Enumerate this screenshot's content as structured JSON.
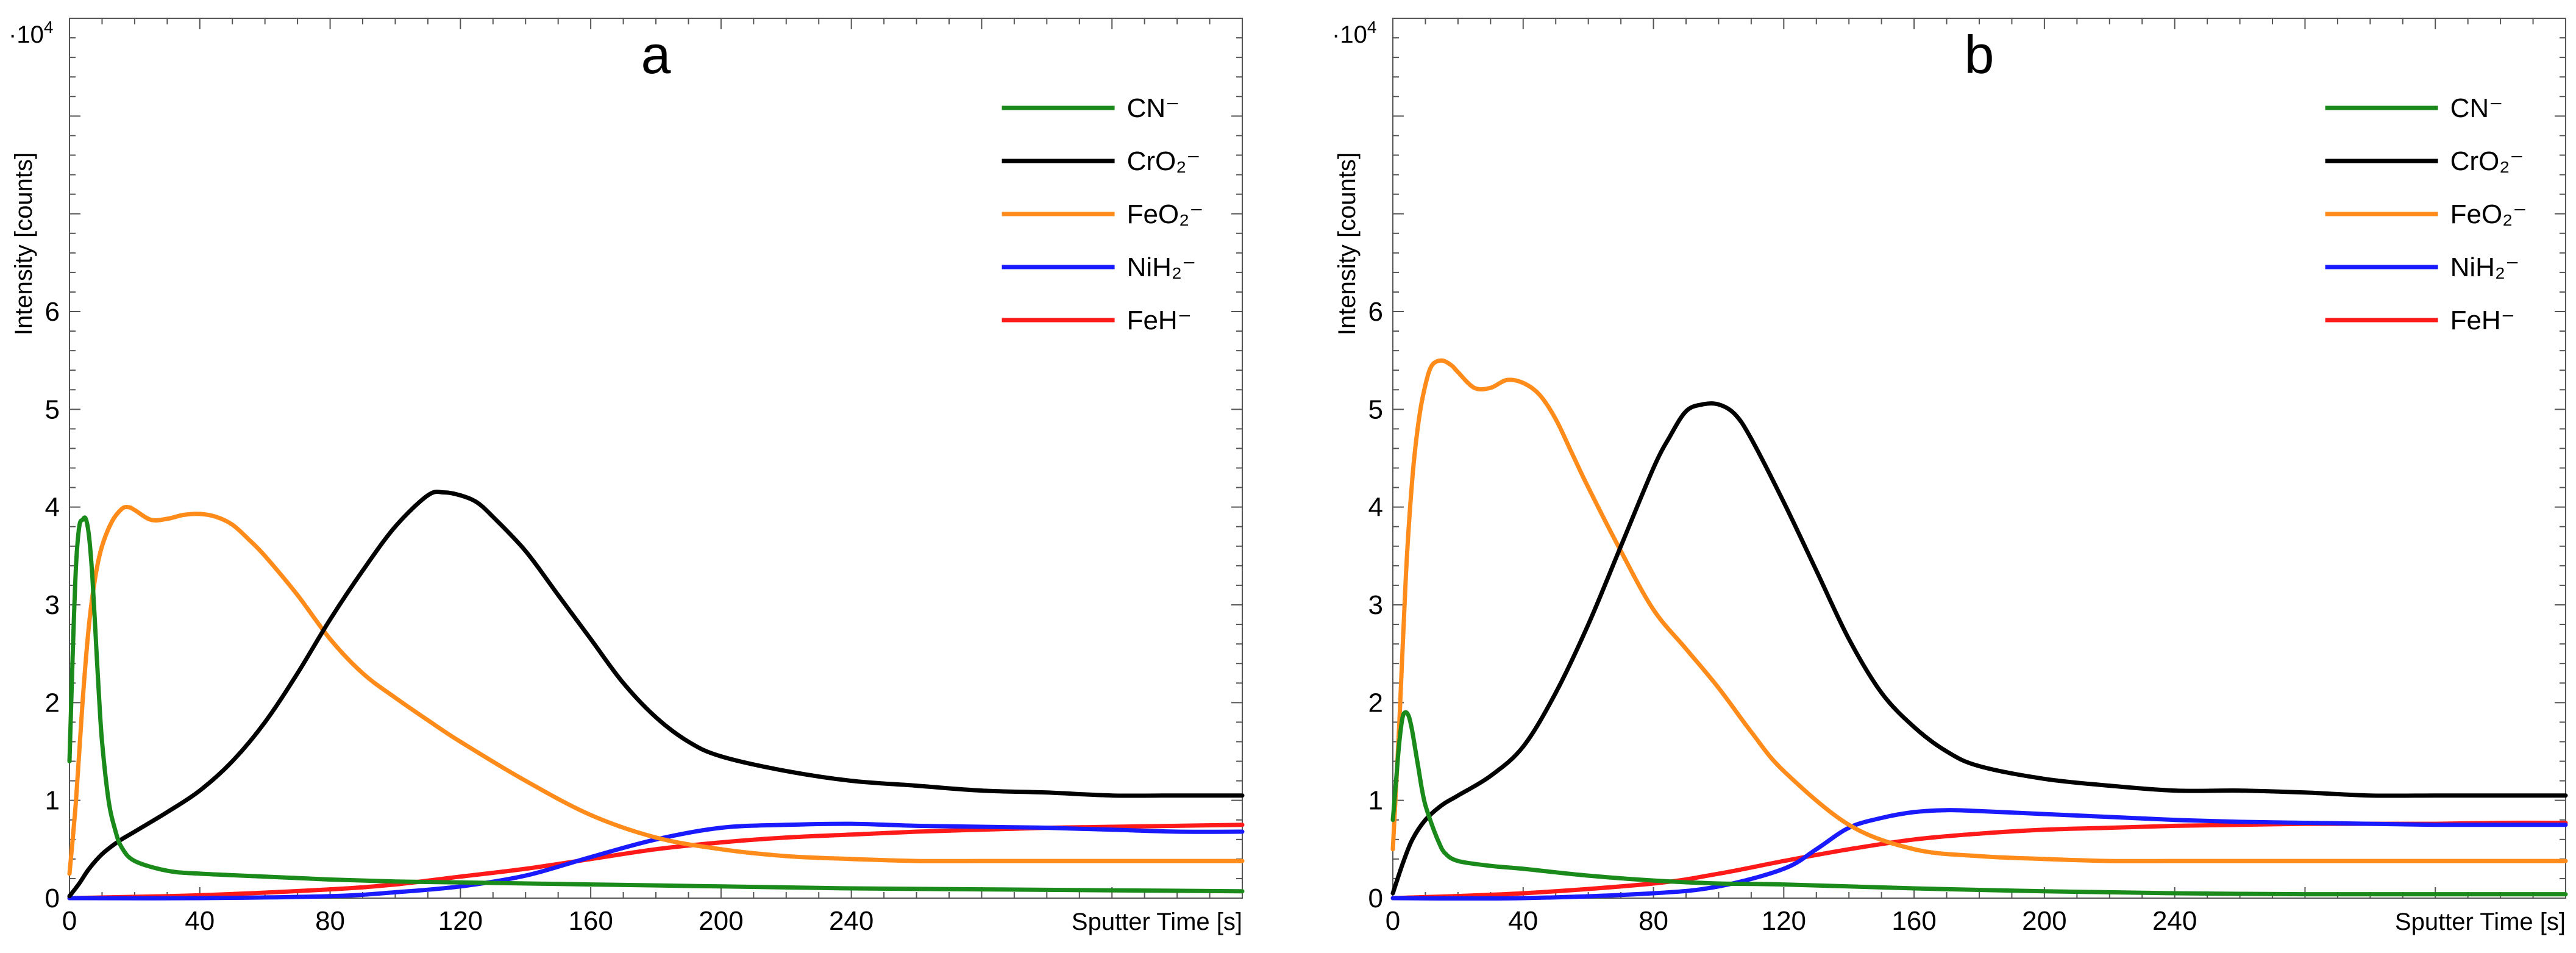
{
  "chart_data": [
    {
      "type": "line",
      "title": "a",
      "xlabel": "Sputter Time [s]",
      "ylabel": "Intensity [counts]",
      "y_exponent": "·10",
      "y_exponent_power": "4",
      "xlim": [
        0,
        360
      ],
      "ylim": [
        0,
        9
      ],
      "x_ticks": [
        0,
        40,
        80,
        120,
        160,
        200,
        240
      ],
      "x_tick_labels": [
        "0",
        "40",
        "80",
        "120",
        "160",
        "200",
        "240"
      ],
      "y_ticks": [
        0,
        1,
        2,
        3,
        4,
        5,
        6
      ],
      "y_tick_labels": [
        "0",
        "1",
        "2",
        "3",
        "4",
        "5",
        "6"
      ],
      "legend_position": "top-right",
      "series": [
        {
          "name": "CN⁻",
          "color": "#1a8a1a",
          "x": [
            0,
            1,
            2,
            3,
            4,
            5,
            6,
            7,
            8,
            9,
            10,
            12,
            14,
            16,
            20,
            30,
            40,
            60,
            80,
            100,
            120,
            160,
            200,
            240,
            280,
            320,
            360
          ],
          "y": [
            1.4,
            2.5,
            3.4,
            3.8,
            3.87,
            3.88,
            3.7,
            3.3,
            2.7,
            2.1,
            1.6,
            1.0,
            0.7,
            0.52,
            0.38,
            0.28,
            0.25,
            0.22,
            0.19,
            0.17,
            0.16,
            0.14,
            0.12,
            0.1,
            0.09,
            0.08,
            0.07
          ]
        },
        {
          "name": "CrO₂⁻",
          "color": "#000000",
          "x": [
            0,
            3,
            6,
            10,
            15,
            20,
            30,
            40,
            50,
            60,
            70,
            80,
            90,
            100,
            110,
            115,
            120,
            125,
            130,
            140,
            150,
            160,
            170,
            180,
            190,
            200,
            220,
            240,
            260,
            280,
            300,
            320,
            340,
            360
          ],
          "y": [
            0.02,
            0.15,
            0.3,
            0.45,
            0.58,
            0.68,
            0.88,
            1.1,
            1.4,
            1.8,
            2.3,
            2.85,
            3.35,
            3.8,
            4.12,
            4.15,
            4.12,
            4.05,
            3.9,
            3.55,
            3.1,
            2.65,
            2.2,
            1.85,
            1.6,
            1.45,
            1.3,
            1.2,
            1.15,
            1.1,
            1.08,
            1.05,
            1.05,
            1.05
          ]
        },
        {
          "name": "FeO₂⁻",
          "color": "#ff8c1a",
          "x": [
            0,
            2,
            4,
            6,
            8,
            10,
            13,
            16,
            18,
            20,
            25,
            30,
            35,
            40,
            45,
            50,
            55,
            60,
            70,
            80,
            90,
            100,
            110,
            120,
            140,
            160,
            180,
            200,
            220,
            240,
            260,
            280,
            300,
            320,
            340,
            360
          ],
          "y": [
            0.25,
            1.0,
            2.0,
            2.8,
            3.3,
            3.6,
            3.85,
            3.98,
            4.0,
            3.97,
            3.87,
            3.88,
            3.92,
            3.93,
            3.9,
            3.82,
            3.67,
            3.5,
            3.1,
            2.65,
            2.3,
            2.05,
            1.82,
            1.6,
            1.2,
            0.85,
            0.62,
            0.5,
            0.43,
            0.4,
            0.38,
            0.38,
            0.38,
            0.38,
            0.38,
            0.38
          ]
        },
        {
          "name": "NiH₂⁻",
          "color": "#1a1aff",
          "x": [
            0,
            40,
            80,
            100,
            120,
            140,
            160,
            180,
            200,
            220,
            240,
            260,
            280,
            300,
            320,
            340,
            360
          ],
          "y": [
            0.0,
            0.0,
            0.02,
            0.06,
            0.12,
            0.23,
            0.42,
            0.6,
            0.72,
            0.75,
            0.76,
            0.74,
            0.73,
            0.72,
            0.7,
            0.68,
            0.68
          ]
        },
        {
          "name": "FeH⁻",
          "color": "#ff1a1a",
          "x": [
            0,
            40,
            80,
            100,
            120,
            140,
            160,
            180,
            200,
            220,
            240,
            260,
            280,
            300,
            320,
            340,
            360
          ],
          "y": [
            0.0,
            0.03,
            0.09,
            0.14,
            0.22,
            0.3,
            0.4,
            0.5,
            0.57,
            0.62,
            0.65,
            0.68,
            0.7,
            0.72,
            0.73,
            0.74,
            0.75
          ]
        }
      ]
    },
    {
      "type": "line",
      "title": "b",
      "xlabel": "Sputter Time [s]",
      "ylabel": "Intensity [counts]",
      "y_exponent": "·10",
      "y_exponent_power": "4",
      "xlim": [
        0,
        360
      ],
      "ylim": [
        0,
        9
      ],
      "x_ticks": [
        0,
        40,
        80,
        120,
        160,
        200,
        240
      ],
      "x_tick_labels": [
        "0",
        "40",
        "80",
        "120",
        "160",
        "200",
        "240"
      ],
      "y_ticks": [
        0,
        1,
        2,
        3,
        4,
        5,
        6
      ],
      "y_tick_labels": [
        "0",
        "1",
        "2",
        "3",
        "4",
        "5",
        "6"
      ],
      "legend_position": "top-right",
      "series": [
        {
          "name": "CN⁻",
          "color": "#1a8a1a",
          "x": [
            0,
            1,
            2,
            3,
            4,
            5,
            6,
            7,
            8,
            9,
            10,
            12,
            14,
            16,
            20,
            30,
            40,
            60,
            80,
            100,
            120,
            160,
            200,
            240,
            280,
            320,
            360
          ],
          "y": [
            0.8,
            1.2,
            1.6,
            1.85,
            1.9,
            1.85,
            1.7,
            1.5,
            1.3,
            1.1,
            0.95,
            0.75,
            0.58,
            0.46,
            0.38,
            0.33,
            0.3,
            0.23,
            0.18,
            0.15,
            0.14,
            0.1,
            0.07,
            0.05,
            0.04,
            0.04,
            0.04
          ]
        },
        {
          "name": "CrO₂⁻",
          "color": "#000000",
          "x": [
            0,
            3,
            6,
            10,
            15,
            20,
            30,
            40,
            50,
            60,
            70,
            80,
            85,
            90,
            95,
            100,
            105,
            110,
            120,
            130,
            140,
            150,
            160,
            170,
            180,
            200,
            220,
            240,
            260,
            280,
            300,
            320,
            340,
            360
          ],
          "y": [
            0.05,
            0.35,
            0.6,
            0.8,
            0.95,
            1.05,
            1.25,
            1.55,
            2.1,
            2.8,
            3.6,
            4.4,
            4.72,
            4.98,
            5.05,
            5.05,
            4.95,
            4.7,
            4.05,
            3.35,
            2.65,
            2.1,
            1.75,
            1.5,
            1.35,
            1.22,
            1.15,
            1.1,
            1.1,
            1.08,
            1.05,
            1.05,
            1.05,
            1.05
          ]
        },
        {
          "name": "FeO₂⁻",
          "color": "#ff8c1a",
          "x": [
            0,
            2,
            4,
            6,
            8,
            10,
            12,
            15,
            18,
            20,
            25,
            30,
            35,
            40,
            45,
            50,
            55,
            60,
            70,
            80,
            90,
            100,
            110,
            120,
            140,
            160,
            180,
            200,
            220,
            240,
            260,
            280,
            300,
            320,
            340,
            360
          ],
          "y": [
            0.5,
            1.8,
            3.3,
            4.3,
            4.9,
            5.25,
            5.45,
            5.5,
            5.45,
            5.38,
            5.22,
            5.22,
            5.3,
            5.27,
            5.15,
            4.9,
            4.55,
            4.2,
            3.55,
            2.95,
            2.55,
            2.15,
            1.7,
            1.3,
            0.75,
            0.5,
            0.43,
            0.4,
            0.38,
            0.38,
            0.38,
            0.38,
            0.38,
            0.38,
            0.38,
            0.38
          ]
        },
        {
          "name": "NiH₂⁻",
          "color": "#1a1aff",
          "x": [
            0,
            40,
            80,
            100,
            120,
            130,
            140,
            150,
            160,
            170,
            180,
            200,
            220,
            240,
            260,
            280,
            300,
            320,
            340,
            360
          ],
          "y": [
            0.0,
            0.0,
            0.05,
            0.12,
            0.3,
            0.5,
            0.72,
            0.82,
            0.88,
            0.9,
            0.89,
            0.86,
            0.83,
            0.8,
            0.78,
            0.77,
            0.76,
            0.75,
            0.75,
            0.75
          ]
        },
        {
          "name": "FeH⁻",
          "color": "#ff1a1a",
          "x": [
            0,
            40,
            80,
            100,
            120,
            140,
            160,
            180,
            200,
            220,
            240,
            260,
            280,
            300,
            320,
            340,
            360
          ],
          "y": [
            0.0,
            0.05,
            0.15,
            0.25,
            0.38,
            0.5,
            0.6,
            0.66,
            0.7,
            0.72,
            0.74,
            0.75,
            0.76,
            0.76,
            0.76,
            0.77,
            0.77
          ]
        }
      ]
    }
  ]
}
